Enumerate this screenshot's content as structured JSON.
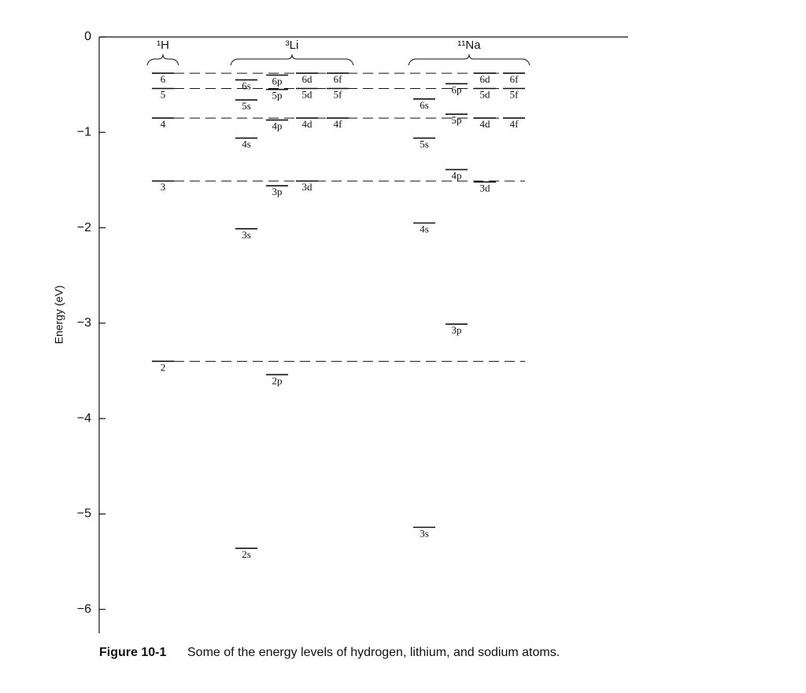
{
  "chart_data": {
    "type": "energy-levels",
    "y_label": "Energy (eV)",
    "ylim": [
      -6.25,
      0
    ],
    "yticks": [
      0,
      {
        "value": -1,
        "label": "−1"
      },
      {
        "value": -2,
        "label": "−2"
      },
      {
        "value": -3,
        "label": "−3"
      },
      {
        "value": -4,
        "label": "−4"
      },
      {
        "value": -5,
        "label": "−5"
      },
      {
        "value": -6,
        "label": "−6"
      }
    ],
    "groups": [
      {
        "name": "¹H",
        "columns": [
          {
            "levels": [
              {
                "label": "6",
                "value": -0.38
              },
              {
                "label": "5",
                "value": -0.54
              },
              {
                "label": "4",
                "value": -0.85
              },
              {
                "label": "3",
                "value": -1.51
              },
              {
                "label": "2",
                "value": -3.4
              }
            ]
          }
        ]
      },
      {
        "name": "³Li",
        "columns": [
          {
            "levels": [
              {
                "label": "6s",
                "value": -0.45
              },
              {
                "label": "5s",
                "value": -0.66
              },
              {
                "label": "4s",
                "value": -1.06
              },
              {
                "label": "3s",
                "value": -2.01
              },
              {
                "label": "2s",
                "value": -5.36
              }
            ]
          },
          {
            "levels": [
              {
                "label": "6p",
                "value": -0.4
              },
              {
                "label": "5p",
                "value": -0.55
              },
              {
                "label": "4p",
                "value": -0.87
              },
              {
                "label": "3p",
                "value": -1.56
              },
              {
                "label": "2p",
                "value": -3.54
              }
            ]
          },
          {
            "levels": [
              {
                "label": "6d",
                "value": -0.38
              },
              {
                "label": "5d",
                "value": -0.54
              },
              {
                "label": "4d",
                "value": -0.85
              },
              {
                "label": "3d",
                "value": -1.51
              }
            ]
          },
          {
            "levels": [
              {
                "label": "6f",
                "value": -0.38
              },
              {
                "label": "5f",
                "value": -0.54
              },
              {
                "label": "4f",
                "value": -0.85
              }
            ]
          }
        ]
      },
      {
        "name": "¹¹Na",
        "columns": [
          {
            "levels": [
              {
                "label": "6s",
                "value": -0.65
              },
              {
                "label": "5s",
                "value": -1.06
              },
              {
                "label": "4s",
                "value": -1.95
              },
              {
                "label": "3s",
                "value": -5.14
              }
            ]
          },
          {
            "levels": [
              {
                "label": "6p",
                "value": -0.49
              },
              {
                "label": "5p",
                "value": -0.81
              },
              {
                "label": "4p",
                "value": -1.39
              },
              {
                "label": "3p",
                "value": -3.01
              }
            ]
          },
          {
            "levels": [
              {
                "label": "6d",
                "value": -0.38
              },
              {
                "label": "5d",
                "value": -0.54
              },
              {
                "label": "4d",
                "value": -0.85
              },
              {
                "label": "3d",
                "value": -1.52
              }
            ]
          },
          {
            "levels": [
              {
                "label": "6f",
                "value": -0.38
              },
              {
                "label": "5f",
                "value": -0.54
              },
              {
                "label": "4f",
                "value": -0.85
              }
            ]
          }
        ]
      }
    ]
  },
  "caption": {
    "label": "Figure 10-1",
    "text": "Some of the energy levels of hydrogen, lithium, and sodium atoms."
  }
}
